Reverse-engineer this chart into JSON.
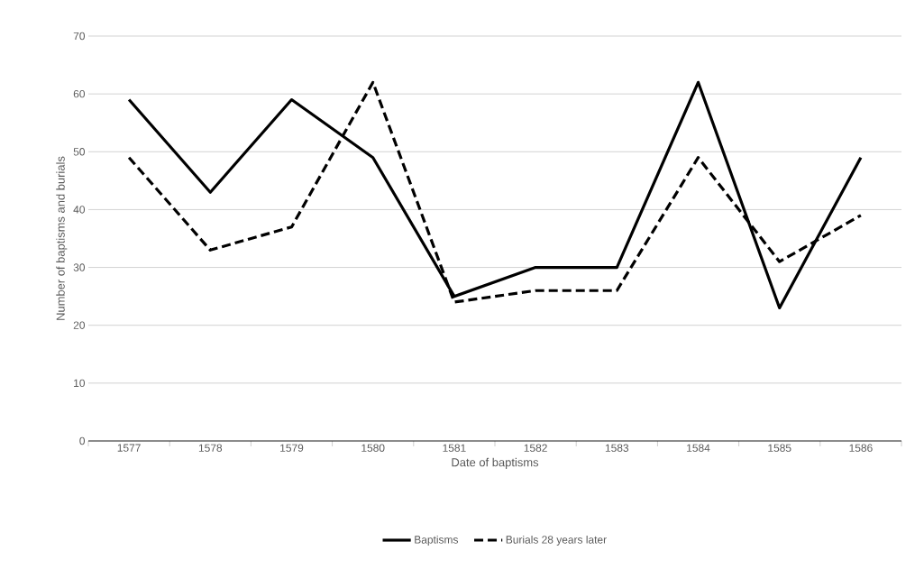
{
  "chart_data": {
    "type": "line",
    "xlabel": "Date of baptisms",
    "ylabel": "Number of baptisms and burials",
    "categories": [
      "1577",
      "1578",
      "1579",
      "1580",
      "1581",
      "1582",
      "1583",
      "1584",
      "1585",
      "1586"
    ],
    "series": [
      {
        "name": "Baptisms",
        "color": "#000000",
        "line_style": "solid",
        "values": [
          59,
          43,
          59,
          49,
          25,
          30,
          30,
          62,
          23,
          49
        ]
      },
      {
        "name": "Burials 28 years later",
        "color": "#000000",
        "line_style": "dashed",
        "values": [
          49,
          33,
          37,
          62,
          24,
          26,
          26,
          49,
          31,
          39
        ]
      }
    ],
    "ylim": [
      0,
      70
    ],
    "yticks": [
      0,
      10,
      20,
      30,
      40,
      50,
      60,
      70
    ],
    "grid": "y",
    "legend": "bottom",
    "marker": "none"
  }
}
